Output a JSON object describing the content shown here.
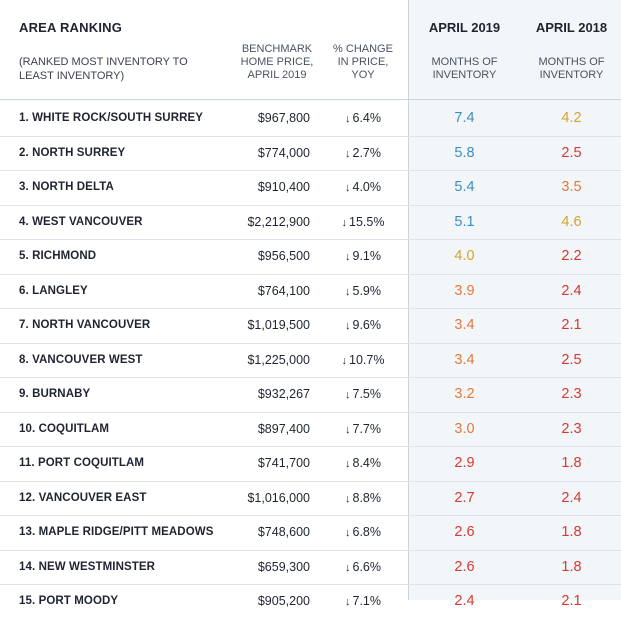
{
  "header": {
    "area_title": "AREA RANKING",
    "area_sub": "(RANKED MOST INVENTORY TO LEAST INVENTORY)",
    "benchmark": "BENCHMARK HOME PRICE, APRIL 2019",
    "change": "% CHANGE IN PRICE, YOY",
    "year_2019": "APRIL 2019",
    "year_2018": "APRIL 2018",
    "moi_2019": "MONTHS OF INVENTORY",
    "moi_2018": "MONTHS OF INVENTORY"
  },
  "colors": {
    "blue": "#3a8fbf",
    "gold": "#d3a42a",
    "orange": "#e07b3a",
    "red": "#d43a33"
  },
  "rows": [
    {
      "area": "1. WHITE ROCK/SOUTH SURREY",
      "price": "$967,800",
      "change": "6.4%",
      "m2019": "7.4",
      "c2019": "blue",
      "m2018": "4.2",
      "c2018": "gold"
    },
    {
      "area": "2. NORTH SURREY",
      "price": "$774,000",
      "change": "2.7%",
      "m2019": "5.8",
      "c2019": "blue",
      "m2018": "2.5",
      "c2018": "red"
    },
    {
      "area": "3. NORTH DELTA",
      "price": "$910,400",
      "change": "4.0%",
      "m2019": "5.4",
      "c2019": "blue",
      "m2018": "3.5",
      "c2018": "orange"
    },
    {
      "area": "4. WEST VANCOUVER",
      "price": "$2,212,900",
      "change": "15.5%",
      "m2019": "5.1",
      "c2019": "blue",
      "m2018": "4.6",
      "c2018": "gold"
    },
    {
      "area": "5. RICHMOND",
      "price": "$956,500",
      "change": "9.1%",
      "m2019": "4.0",
      "c2019": "gold",
      "m2018": "2.2",
      "c2018": "red"
    },
    {
      "area": "6. LANGLEY",
      "price": "$764,100",
      "change": "5.9%",
      "m2019": "3.9",
      "c2019": "orange",
      "m2018": "2.4",
      "c2018": "red"
    },
    {
      "area": "7. NORTH VANCOUVER",
      "price": "$1,019,500",
      "change": "9.6%",
      "m2019": "3.4",
      "c2019": "orange",
      "m2018": "2.1",
      "c2018": "red"
    },
    {
      "area": "8. VANCOUVER WEST",
      "price": "$1,225,000",
      "change": "10.7%",
      "m2019": "3.4",
      "c2019": "orange",
      "m2018": "2.5",
      "c2018": "red"
    },
    {
      "area": "9. BURNABY",
      "price": "$932,267",
      "change": "7.5%",
      "m2019": "3.2",
      "c2019": "orange",
      "m2018": "2.3",
      "c2018": "red"
    },
    {
      "area": "10. COQUITLAM",
      "price": "$897,400",
      "change": "7.7%",
      "m2019": "3.0",
      "c2019": "orange",
      "m2018": "2.3",
      "c2018": "red"
    },
    {
      "area": "11. PORT COQUITLAM",
      "price": "$741,700",
      "change": "8.4%",
      "m2019": "2.9",
      "c2019": "red",
      "m2018": "1.8",
      "c2018": "red"
    },
    {
      "area": "12. VANCOUVER EAST",
      "price": "$1,016,000",
      "change": "8.8%",
      "m2019": "2.7",
      "c2019": "red",
      "m2018": "2.4",
      "c2018": "red"
    },
    {
      "area": "13. MAPLE RIDGE/PITT MEADOWS",
      "price": "$748,600",
      "change": "6.8%",
      "m2019": "2.6",
      "c2019": "red",
      "m2018": "1.8",
      "c2018": "red"
    },
    {
      "area": "14. NEW WESTMINSTER",
      "price": "$659,300",
      "change": "6.6%",
      "m2019": "2.6",
      "c2019": "red",
      "m2018": "1.8",
      "c2018": "red"
    },
    {
      "area": "15. PORT MOODY",
      "price": "$905,200",
      "change": "7.1%",
      "m2019": "2.4",
      "c2019": "red",
      "m2018": "2.1",
      "c2018": "red"
    }
  ]
}
